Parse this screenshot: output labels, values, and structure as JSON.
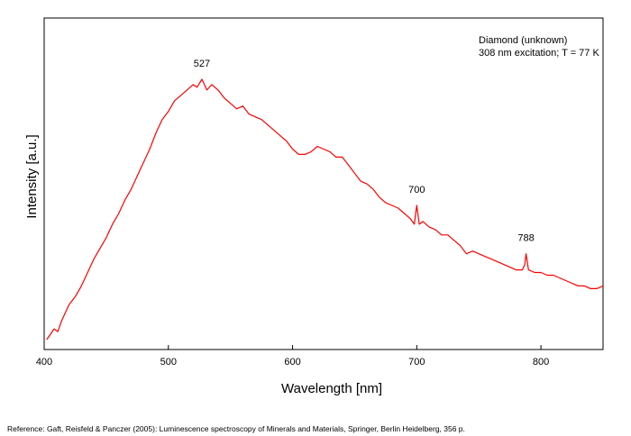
{
  "chart_data": {
    "type": "line",
    "xlabel": "Wavelength [nm]",
    "ylabel": "Intensity [a.u.]",
    "xlim": [
      400,
      850
    ],
    "ylim": [
      0,
      1
    ],
    "xticks": [
      400,
      500,
      600,
      700,
      800
    ],
    "grid": false,
    "line_color": "#ff0000",
    "legend_text": [
      "Diamond (unknown)",
      "308 nm excitation; T = 77 K"
    ],
    "legend_position": "top-right",
    "annotations": [
      {
        "text": "527",
        "x": 527,
        "y": 0.99
      },
      {
        "text": "700",
        "x": 700,
        "y": 0.52
      },
      {
        "text": "788",
        "x": 788,
        "y": 0.34
      }
    ],
    "series": [
      {
        "x": [
          402,
          405,
          408,
          411,
          414,
          417,
          420,
          425,
          430,
          435,
          440,
          445,
          450,
          455,
          460,
          465,
          470,
          475,
          480,
          485,
          490,
          495,
          500,
          505,
          510,
          515,
          520,
          523,
          527,
          531,
          535,
          540,
          545,
          550,
          555,
          560,
          565,
          570,
          575,
          580,
          585,
          590,
          595,
          600,
          605,
          610,
          615,
          620,
          625,
          630,
          635,
          640,
          645,
          650,
          655,
          660,
          665,
          670,
          675,
          680,
          685,
          690,
          695,
          698,
          700,
          702,
          705,
          710,
          715,
          720,
          725,
          730,
          735,
          740,
          745,
          750,
          755,
          760,
          765,
          770,
          775,
          780,
          785,
          787,
          788,
          790,
          795,
          800,
          805,
          810,
          815,
          820,
          825,
          830,
          835,
          840,
          845,
          850
        ],
        "y": [
          0.02,
          0.04,
          0.06,
          0.05,
          0.09,
          0.12,
          0.15,
          0.18,
          0.22,
          0.27,
          0.32,
          0.36,
          0.4,
          0.45,
          0.49,
          0.54,
          0.58,
          0.63,
          0.68,
          0.73,
          0.79,
          0.84,
          0.87,
          0.91,
          0.93,
          0.95,
          0.97,
          0.96,
          0.99,
          0.95,
          0.97,
          0.95,
          0.92,
          0.9,
          0.88,
          0.89,
          0.86,
          0.85,
          0.84,
          0.82,
          0.8,
          0.78,
          0.76,
          0.73,
          0.71,
          0.71,
          0.72,
          0.74,
          0.73,
          0.72,
          0.7,
          0.7,
          0.67,
          0.64,
          0.61,
          0.6,
          0.58,
          0.55,
          0.53,
          0.52,
          0.51,
          0.49,
          0.47,
          0.45,
          0.52,
          0.45,
          0.46,
          0.44,
          0.43,
          0.41,
          0.41,
          0.39,
          0.37,
          0.34,
          0.35,
          0.34,
          0.33,
          0.32,
          0.31,
          0.3,
          0.29,
          0.28,
          0.28,
          0.3,
          0.34,
          0.28,
          0.27,
          0.27,
          0.26,
          0.26,
          0.25,
          0.24,
          0.23,
          0.22,
          0.22,
          0.21,
          0.21,
          0.22
        ]
      }
    ]
  },
  "footer": {
    "reference": "Reference: Gaft, Reisfeld & Panczer (2005): Luminescence spectroscopy of Minerals and Materials, Springer, Berlin Heidelberg, 356 p."
  }
}
